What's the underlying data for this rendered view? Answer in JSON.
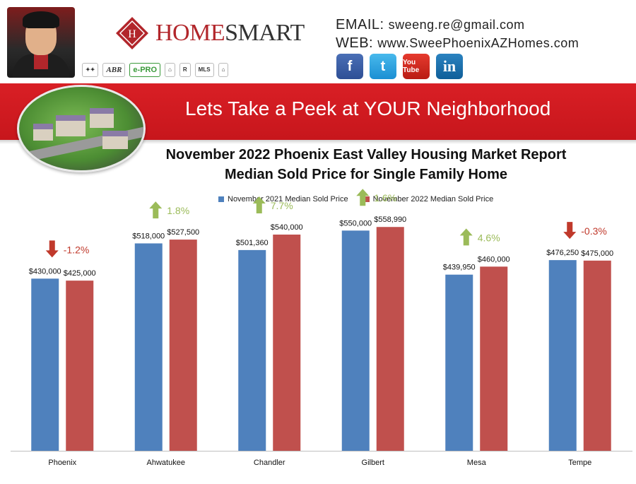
{
  "header": {
    "brand_prefix": "HOME",
    "brand_suffix": "SMART",
    "email_label": "EMAIL:",
    "email_value": "sweeng.re@gmail.com",
    "web_label": "WEB:",
    "web_value": "www.SweePhoenixAZHomes.com",
    "badges": [
      "ABR",
      "e-PRO",
      "MLS"
    ],
    "social": {
      "facebook": "f",
      "twitter": "t",
      "youtube": "You Tube",
      "linkedin": "in"
    }
  },
  "banner": {
    "text": "Lets Take a Peek at YOUR Neighborhood",
    "color": "#d91f25"
  },
  "chart_data": {
    "type": "bar",
    "title": "November 2022 Phoenix East Valley Housing Market Report",
    "subtitle": "Median Sold Price for Single Family Home",
    "categories": [
      "Phoenix",
      "Ahwatukee",
      "Chandler",
      "Gilbert",
      "Mesa",
      "Tempe"
    ],
    "series": [
      {
        "name": "November 2021 Median Sold Price",
        "color": "#4f81bd",
        "values": [
          430000,
          518000,
          501360,
          550000,
          439950,
          476250
        ],
        "labels": [
          "$430,000",
          "$518,000",
          "$501,360",
          "$550,000",
          "$439,950",
          "$476,250"
        ]
      },
      {
        "name": "November 2022 Median Sold Price",
        "color": "#c0504d",
        "values": [
          425000,
          527500,
          540000,
          558990,
          460000,
          475000
        ],
        "labels": [
          "$425,000",
          "$527,500",
          "$540,000",
          "$558,990",
          "$460,000",
          "$475,000"
        ]
      }
    ],
    "changes": [
      {
        "text": "-1.2%",
        "direction": "down"
      },
      {
        "text": "1.8%",
        "direction": "up"
      },
      {
        "text": "7.7%",
        "direction": "up"
      },
      {
        "text": "1.6%",
        "direction": "up"
      },
      {
        "text": "4.6%",
        "direction": "up"
      },
      {
        "text": "-0.3%",
        "direction": "down"
      }
    ],
    "change_colors": {
      "up": "#9bbb59",
      "down": "#c0392b"
    },
    "ylim": [
      0,
      600000
    ],
    "grid": false,
    "legend_position": "top-center"
  }
}
